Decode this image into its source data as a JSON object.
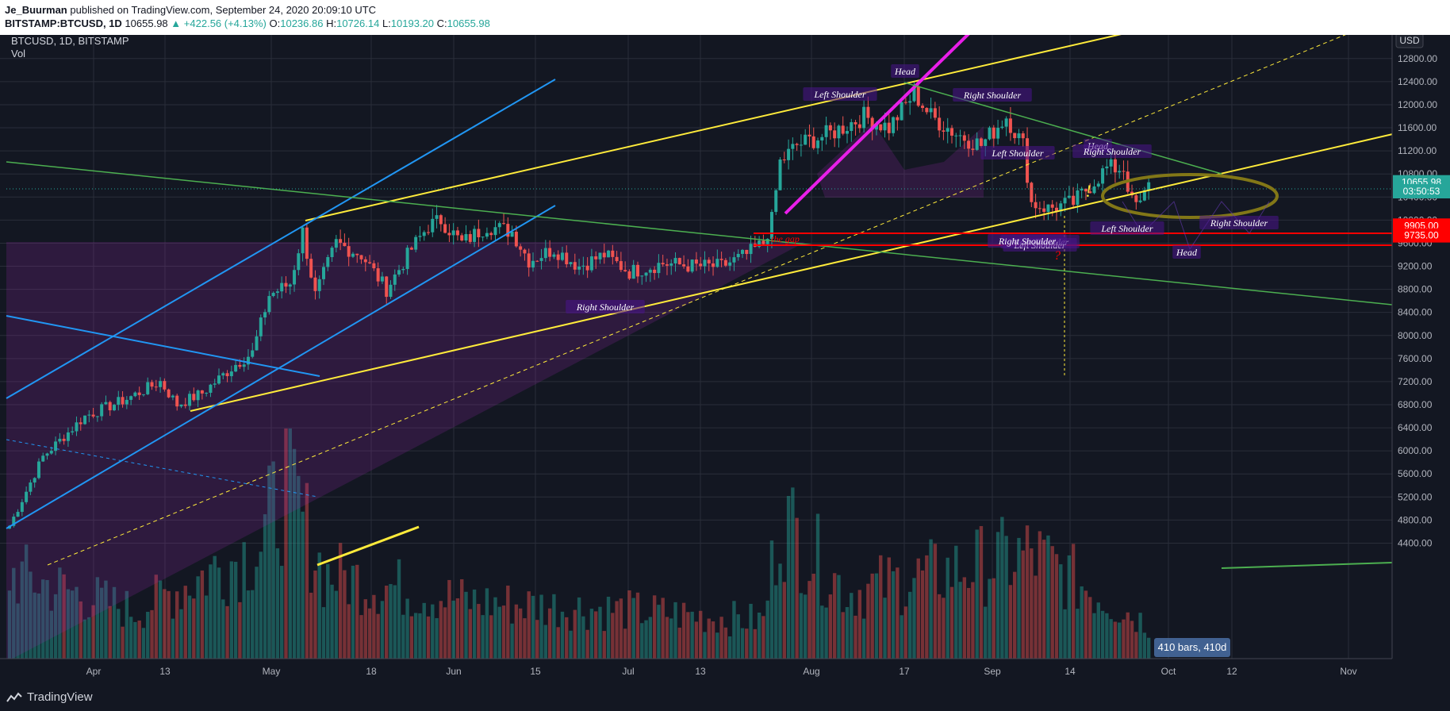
{
  "header": {
    "author": "Je_Buurman",
    "published_text": "published on TradingView.com, September 24, 2020 20:09:10 UTC",
    "symbol": "BITSTAMP:BTCUSD, 1D",
    "price": "10655.98",
    "change": "+422.56 (+4.13%)",
    "o_label": "O:",
    "o_value": "10236.86",
    "h_label": "H:",
    "h_value": "10726.14",
    "l_label": "L:",
    "l_value": "10193.20",
    "c_label": "C:",
    "c_value": "10655.98"
  },
  "legend": {
    "title": "BTCUSD, 1D, BITSTAMP",
    "vol_label": "Vol"
  },
  "currency_button": "USD",
  "bars_label": "410 bars, 410d",
  "footer": {
    "brand": "TradingView"
  },
  "colors": {
    "background": "#131722",
    "grid": "#2a2e39",
    "up": "#26a69a",
    "down": "#ef5350",
    "yellow": "#ffeb3b",
    "magenta": "#e91ee9",
    "blue": "#2196f3",
    "green": "#4caf50",
    "purple_fill": "#9c27b0",
    "red_line": "#ff0000"
  },
  "chart_data": {
    "type": "candlestick",
    "title": "BTCUSD, 1D, BITSTAMP",
    "x_tick_labels": [
      "Apr",
      "13",
      "May",
      "18",
      "Jun",
      "15",
      "Jul",
      "13",
      "Aug",
      "17",
      "Sep",
      "14",
      "Oct",
      "12",
      "Nov"
    ],
    "y_tick_labels": [
      "12800.00",
      "12400.00",
      "12000.00",
      "11600.00",
      "11200.00",
      "10800.00",
      "10400.00",
      "10000.00",
      "9600.00",
      "9200.00",
      "8800.00",
      "8400.00",
      "8000.00",
      "7600.00",
      "7200.00",
      "6800.00",
      "6400.00",
      "6000.00",
      "5600.00",
      "5200.00",
      "4800.00",
      "4400.00"
    ],
    "ylim": [
      4200,
      13100
    ],
    "price_tags": [
      {
        "text": "10655.98",
        "value": 10655.98,
        "color": "#26a69a"
      },
      {
        "text": "03:50:53",
        "value": 10500,
        "color": "#26a69a"
      },
      {
        "text": "9905.00",
        "value": 9905,
        "color": "#ff0000"
      },
      {
        "text": "9735.00",
        "value": 9735,
        "color": "#ff0000"
      }
    ],
    "annotations": [
      "Head",
      "Left Shoulder",
      "Right Shoulder",
      "Right Shoulder",
      "Left Shoulder",
      "Head",
      "Right Shoulder",
      "Left Shoulder",
      "Right Shoulder",
      "Head",
      "Right Shoulder",
      "Left Shoulder",
      "Right Shoulder",
      "the gap",
      "!",
      "?"
    ],
    "anchors": [
      {
        "x": 0,
        "y": 4700
      },
      {
        "x": 8,
        "y": 5900
      },
      {
        "x": 18,
        "y": 6600
      },
      {
        "x": 28,
        "y": 6900
      },
      {
        "x": 36,
        "y": 7200
      },
      {
        "x": 40,
        "y": 6800
      },
      {
        "x": 46,
        "y": 7000
      },
      {
        "x": 54,
        "y": 7500
      },
      {
        "x": 58,
        "y": 7700
      },
      {
        "x": 62,
        "y": 8700
      },
      {
        "x": 67,
        "y": 8900
      },
      {
        "x": 70,
        "y": 9800
      },
      {
        "x": 73,
        "y": 8700
      },
      {
        "x": 78,
        "y": 9600
      },
      {
        "x": 84,
        "y": 9400
      },
      {
        "x": 90,
        "y": 8800
      },
      {
        "x": 96,
        "y": 9500
      },
      {
        "x": 100,
        "y": 9900
      },
      {
        "x": 103,
        "y": 10000
      },
      {
        "x": 108,
        "y": 9600
      },
      {
        "x": 114,
        "y": 9900
      },
      {
        "x": 120,
        "y": 9800
      },
      {
        "x": 124,
        "y": 9300
      },
      {
        "x": 130,
        "y": 9500
      },
      {
        "x": 136,
        "y": 9200
      },
      {
        "x": 142,
        "y": 9400
      },
      {
        "x": 148,
        "y": 9100
      },
      {
        "x": 156,
        "y": 9250
      },
      {
        "x": 164,
        "y": 9200
      },
      {
        "x": 170,
        "y": 9200
      },
      {
        "x": 176,
        "y": 9400
      },
      {
        "x": 180,
        "y": 9600
      },
      {
        "x": 182,
        "y": 10000
      },
      {
        "x": 184,
        "y": 11000
      },
      {
        "x": 188,
        "y": 11300
      },
      {
        "x": 196,
        "y": 11500
      },
      {
        "x": 204,
        "y": 11800
      },
      {
        "x": 210,
        "y": 11600
      },
      {
        "x": 214,
        "y": 12000
      },
      {
        "x": 216,
        "y": 12200
      },
      {
        "x": 220,
        "y": 11800
      },
      {
        "x": 226,
        "y": 11500
      },
      {
        "x": 232,
        "y": 11300
      },
      {
        "x": 238,
        "y": 11800
      },
      {
        "x": 242,
        "y": 11300
      },
      {
        "x": 244,
        "y": 10300
      },
      {
        "x": 248,
        "y": 10200
      },
      {
        "x": 254,
        "y": 10300
      },
      {
        "x": 258,
        "y": 10600
      },
      {
        "x": 262,
        "y": 10900
      },
      {
        "x": 266,
        "y": 10900
      },
      {
        "x": 268,
        "y": 10300
      },
      {
        "x": 270,
        "y": 10250
      },
      {
        "x": 272,
        "y": 10656
      }
    ],
    "volume_anchors": [
      {
        "x": 0,
        "y": 0.45
      },
      {
        "x": 30,
        "y": 0.25
      },
      {
        "x": 60,
        "y": 0.6
      },
      {
        "x": 66,
        "y": 0.95
      },
      {
        "x": 75,
        "y": 0.45
      },
      {
        "x": 110,
        "y": 0.3
      },
      {
        "x": 150,
        "y": 0.25
      },
      {
        "x": 180,
        "y": 0.2
      },
      {
        "x": 184,
        "y": 0.75
      },
      {
        "x": 200,
        "y": 0.35
      },
      {
        "x": 244,
        "y": 0.55
      },
      {
        "x": 272,
        "y": 0.18
      }
    ]
  }
}
